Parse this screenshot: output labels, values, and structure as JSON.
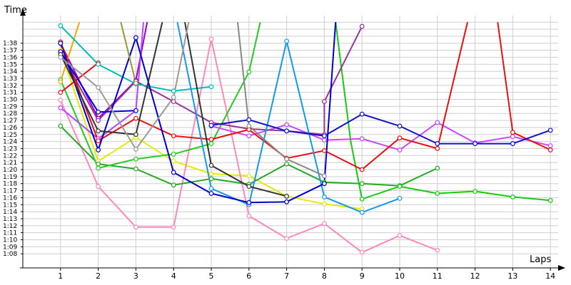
{
  "chart_data": {
    "type": "line",
    "ylabel": "Time",
    "xlabel": "Laps",
    "grid": true,
    "xlim": [
      0,
      14
    ],
    "ylim": [
      66,
      101
    ],
    "categories": [
      1,
      2,
      3,
      4,
      5,
      6,
      7,
      8,
      9,
      10,
      11,
      12,
      13,
      14
    ],
    "y_ticks": [
      {
        "v": 68,
        "label": "1:08"
      },
      {
        "v": 69,
        "label": "1:09"
      },
      {
        "v": 70,
        "label": "1:10"
      },
      {
        "v": 71,
        "label": "1:11"
      },
      {
        "v": 72,
        "label": "1:12"
      },
      {
        "v": 73,
        "label": "1:13"
      },
      {
        "v": 74,
        "label": "1:14"
      },
      {
        "v": 75,
        "label": "1:15"
      },
      {
        "v": 76,
        "label": "1:16"
      },
      {
        "v": 77,
        "label": "1:17"
      },
      {
        "v": 78,
        "label": "1:18"
      },
      {
        "v": 79,
        "label": "1:19"
      },
      {
        "v": 80,
        "label": "1:20"
      },
      {
        "v": 81,
        "label": "1:21"
      },
      {
        "v": 82,
        "label": "1:22"
      },
      {
        "v": 83,
        "label": "1:23"
      },
      {
        "v": 84,
        "label": "1:24"
      },
      {
        "v": 85,
        "label": "1:25"
      },
      {
        "v": 86,
        "label": "1:26"
      },
      {
        "v": 87,
        "label": "1:27"
      },
      {
        "v": 88,
        "label": "1:28"
      },
      {
        "v": 89,
        "label": "1:29"
      },
      {
        "v": 90,
        "label": "1:30"
      },
      {
        "v": 91,
        "label": "1:31"
      },
      {
        "v": 92,
        "label": "1:32"
      },
      {
        "v": 93,
        "label": "1:33"
      },
      {
        "v": 94,
        "label": "1:34"
      },
      {
        "v": 95,
        "label": "1:35"
      },
      {
        "v": 96,
        "label": "1:36"
      },
      {
        "v": 97,
        "label": "1:37"
      },
      {
        "v": 98,
        "label": "1:38"
      }
    ],
    "series": [
      {
        "color": "#e8e800",
        "values": [
          {
            "x": 1,
            "y": 97
          },
          {
            "x": 2,
            "y": 81.2
          },
          {
            "x": 3,
            "y": 84.6
          },
          {
            "x": 4,
            "y": 81.2
          },
          {
            "x": 5,
            "y": 79.4
          },
          {
            "x": 6,
            "y": 79.1
          },
          {
            "x": 7,
            "y": 76.2
          },
          {
            "x": 8,
            "y": 75.1
          },
          {
            "x": 9,
            "y": 74.4
          }
        ]
      },
      {
        "color": "#ff88bb",
        "values": [
          {
            "x": 1,
            "y": 89.9
          },
          {
            "x": 2,
            "y": 77.6
          },
          {
            "x": 3,
            "y": 71.8
          },
          {
            "x": 4,
            "y": 71.8
          },
          {
            "x": 5,
            "y": 98.6
          },
          {
            "x": 6,
            "y": 73.4
          },
          {
            "x": 7,
            "y": 70.2
          },
          {
            "x": 8,
            "y": 72.3
          },
          {
            "x": 9,
            "y": 68.2
          },
          {
            "x": 10,
            "y": 70.6
          },
          {
            "x": 11,
            "y": 68.5
          }
        ]
      },
      {
        "color": "#22aa22",
        "values": [
          {
            "x": 1,
            "y": 86.2
          },
          {
            "x": 2,
            "y": 80.8
          },
          {
            "x": 3,
            "y": 80.1
          },
          {
            "x": 4,
            "y": 77.8
          },
          {
            "x": 5,
            "y": 78.7
          },
          {
            "x": 6,
            "y": 77.9
          },
          {
            "x": 7,
            "y": 80.8
          },
          {
            "x": 8,
            "y": 78.2
          },
          {
            "x": 9,
            "y": 78
          },
          {
            "x": 10,
            "y": 77.7
          },
          {
            "x": 11,
            "y": 80.2
          }
        ]
      },
      {
        "color": "#22cc22",
        "values": [
          {
            "x": 1,
            "y": 92.8
          },
          {
            "x": 2,
            "y": 80.2
          },
          {
            "x": 3,
            "y": 81.5
          },
          {
            "x": 4,
            "y": 82.2
          },
          {
            "x": 5,
            "y": 83.7
          },
          {
            "x": 6,
            "y": 93.9
          },
          {
            "x": 6.3,
            "y": 101
          }
        ]
      },
      {
        "color": "#11cc11",
        "values": [
          {
            "x": 8.3,
            "y": 101
          },
          {
            "x": 8.7,
            "y": 84
          },
          {
            "x": 9,
            "y": 75.8
          },
          {
            "x": 10,
            "y": 77.6
          },
          {
            "x": 11,
            "y": 76.6
          },
          {
            "x": 12,
            "y": 76.9
          },
          {
            "x": 13,
            "y": 76.1
          },
          {
            "x": 14,
            "y": 75.6
          }
        ]
      },
      {
        "color": "#9900cc",
        "values": [
          {
            "x": 1,
            "y": 98
          },
          {
            "x": 2,
            "y": 87.3
          },
          {
            "x": 3,
            "y": 92.7
          },
          {
            "x": 3.3,
            "y": 101
          }
        ]
      },
      {
        "color": "#bb44ff",
        "values": [
          {
            "x": 1,
            "y": 88.8
          },
          {
            "x": 2,
            "y": 84.4
          },
          {
            "x": 3,
            "y": 88.4
          },
          {
            "x": 3.2,
            "y": 101
          }
        ]
      },
      {
        "color": "#cc44ff",
        "values": [
          {
            "x": 5,
            "y": 86.2
          },
          {
            "x": 6,
            "y": 84.8
          },
          {
            "x": 7,
            "y": 86.4
          },
          {
            "x": 8,
            "y": 84.2
          },
          {
            "x": 9,
            "y": 84.4
          },
          {
            "x": 10,
            "y": 82.8
          },
          {
            "x": 11,
            "y": 86.7
          },
          {
            "x": 12,
            "y": 83.8
          },
          {
            "x": 13,
            "y": 84.7
          },
          {
            "x": 14,
            "y": 83.4
          }
        ]
      },
      {
        "color": "#993399",
        "values": [
          {
            "x": 1,
            "y": 96.7
          },
          {
            "x": 2,
            "y": 87
          },
          {
            "x": 3,
            "y": 92.6
          },
          {
            "x": 4,
            "y": 89.7
          },
          {
            "x": 5,
            "y": 86.7
          },
          {
            "x": 6,
            "y": 85.8
          },
          {
            "x": 7,
            "y": 85.5
          },
          {
            "x": 8,
            "y": 85
          },
          {
            "x": 8,
            "y": 89.7
          },
          {
            "x": 9,
            "y": 100.4
          }
        ]
      },
      {
        "color": "#f7a800",
        "values": [
          {
            "x": 1,
            "y": 92.5
          },
          {
            "x": 1.5,
            "y": 101
          }
        ]
      },
      {
        "color": "#e81010",
        "values": [
          {
            "x": 1,
            "y": 98.2
          },
          {
            "x": 2,
            "y": 84.1
          },
          {
            "x": 3,
            "y": 87.3
          },
          {
            "x": 4,
            "y": 84.8
          },
          {
            "x": 5,
            "y": 84.3
          },
          {
            "x": 6,
            "y": 85.7
          },
          {
            "x": 7,
            "y": 81.6
          },
          {
            "x": 8,
            "y": 82.7
          },
          {
            "x": 9,
            "y": 80
          },
          {
            "x": 10,
            "y": 84.5
          },
          {
            "x": 11,
            "y": 83.0
          },
          {
            "x": 11.8,
            "y": 101
          }
        ]
      },
      {
        "color": "#e81010",
        "values": [
          {
            "x": 12.6,
            "y": 101
          },
          {
            "x": 13,
            "y": 85.3
          },
          {
            "x": 14,
            "y": 82.8
          }
        ]
      },
      {
        "color": "#e81010",
        "values": [
          {
            "x": 1,
            "y": 91.0
          },
          {
            "x": 2,
            "y": 95.2
          }
        ]
      },
      {
        "color": "#00bbbb",
        "values": [
          {
            "x": 1,
            "y": 100.5
          },
          {
            "x": 2,
            "y": 95.0
          },
          {
            "x": 3,
            "y": 92.2
          },
          {
            "x": 4,
            "y": 91.2
          },
          {
            "x": 5,
            "y": 91.8
          }
        ]
      },
      {
        "color": "#1199ee",
        "values": [
          {
            "x": 4.1,
            "y": 101
          },
          {
            "x": 5,
            "y": 77.3
          },
          {
            "x": 6,
            "y": 75.0
          },
          {
            "x": 7,
            "y": 98.3
          },
          {
            "x": 8,
            "y": 76.1
          },
          {
            "x": 9,
            "y": 73.9
          },
          {
            "x": 10,
            "y": 75.9
          }
        ]
      },
      {
        "color": "#0000cc",
        "values": [
          {
            "x": 1,
            "y": 98.0
          },
          {
            "x": 2,
            "y": 82.8
          },
          {
            "x": 3,
            "y": 98.8
          },
          {
            "x": 4,
            "y": 79.6
          },
          {
            "x": 5,
            "y": 76.6
          },
          {
            "x": 6,
            "y": 75.3
          },
          {
            "x": 7,
            "y": 75.4
          },
          {
            "x": 8,
            "y": 78.0
          },
          {
            "x": 8.3,
            "y": 101
          }
        ]
      },
      {
        "color": "#0000dd",
        "values": [
          {
            "x": 1,
            "y": 96.8
          },
          {
            "x": 2,
            "y": 88.2
          },
          {
            "x": 3,
            "y": 88.4
          }
        ]
      },
      {
        "color": "#1111cc",
        "values": [
          {
            "x": 5,
            "y": 86.3
          },
          {
            "x": 6,
            "y": 87.1
          },
          {
            "x": 7,
            "y": 85.5
          },
          {
            "x": 8,
            "y": 84.8
          },
          {
            "x": 9,
            "y": 87.9
          },
          {
            "x": 10,
            "y": 86.2
          },
          {
            "x": 11,
            "y": 83.7
          },
          {
            "x": 12,
            "y": 83.7
          },
          {
            "x": 13,
            "y": 83.7
          },
          {
            "x": 14,
            "y": 85.6
          }
        ]
      },
      {
        "color": "#333333",
        "values": [
          {
            "x": 1,
            "y": 96.4
          },
          {
            "x": 2,
            "y": 85.5
          },
          {
            "x": 3,
            "y": 85.0
          },
          {
            "x": 3.7,
            "y": 101
          }
        ]
      },
      {
        "color": "#333333",
        "values": [
          {
            "x": 4.3,
            "y": 101
          },
          {
            "x": 5,
            "y": 80.6
          },
          {
            "x": 6,
            "y": 77.6
          },
          {
            "x": 7,
            "y": 76.2
          }
        ]
      },
      {
        "color": "#999999",
        "values": [
          {
            "x": 1,
            "y": 96.0
          },
          {
            "x": 2,
            "y": 91.7
          },
          {
            "x": 3,
            "y": 82.9
          },
          {
            "x": 4,
            "y": 90.3
          },
          {
            "x": 4.4,
            "y": 101
          }
        ]
      },
      {
        "color": "#888888",
        "values": [
          {
            "x": 5.7,
            "y": 101
          },
          {
            "x": 6,
            "y": 86.2
          },
          {
            "x": 7,
            "y": 81.5
          },
          {
            "x": 8,
            "y": 79.1
          }
        ]
      },
      {
        "color": "#999933",
        "values": [
          {
            "x": 2.6,
            "y": 101
          },
          {
            "x": 3,
            "y": 92.3
          }
        ]
      }
    ]
  }
}
